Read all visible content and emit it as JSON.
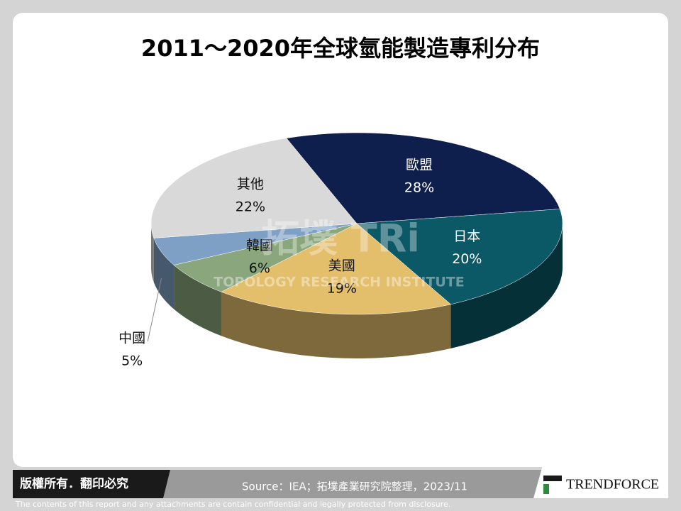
{
  "chart_data": {
    "type": "pie3d",
    "title": "2011～2020年全球氫能製造專利分布",
    "categories": [
      "歐盟",
      "日本",
      "美國",
      "韓國",
      "中國",
      "其他"
    ],
    "values": [
      28,
      20,
      19,
      6,
      5,
      22
    ],
    "value_labels": [
      "28%",
      "20%",
      "19%",
      "6%",
      "5%",
      "22%"
    ],
    "colors": [
      "#0e1f4e",
      "#0b5866",
      "#e3be6b",
      "#8aa67c",
      "#7ea0c4",
      "#d9d9d9"
    ],
    "start_angle": -20
  },
  "watermark": {
    "logo": "拓墣 TRi",
    "text": "TOPOLOGY RESEARCH INSTITUTE"
  },
  "footer": {
    "copyright": "版權所有．翻印必究",
    "source": "Source：IEA；拓墣產業研究院整理，2023/11",
    "brand": "TRENDFORCE",
    "disclaimer": "The contents of this report and any attachments are contain confidential and legally protected from disclosure."
  }
}
